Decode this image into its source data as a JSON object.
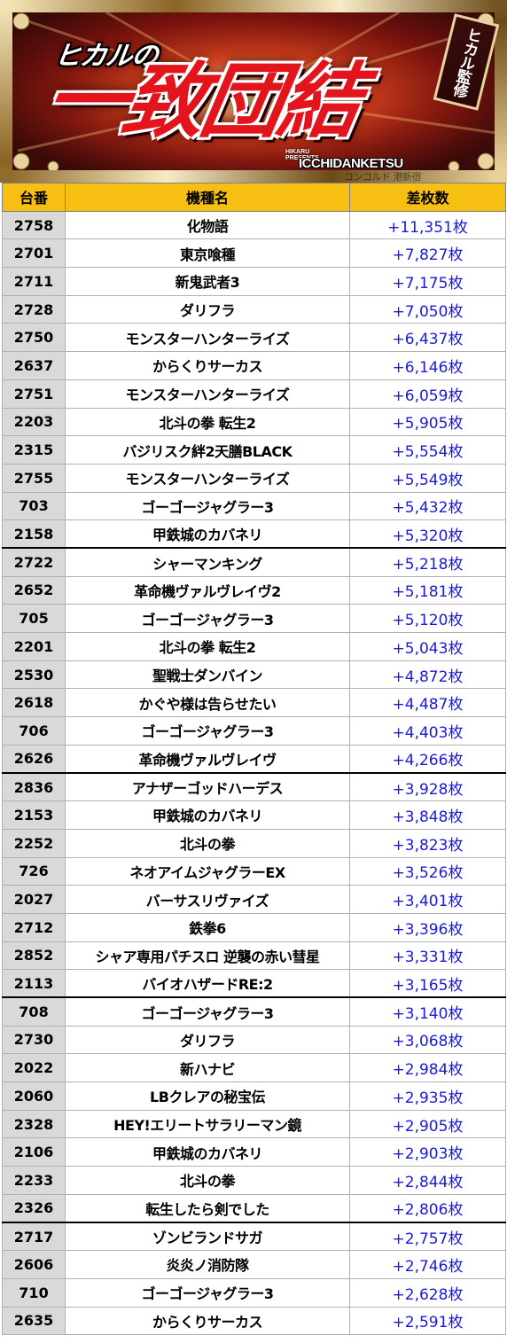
{
  "banner": {
    "small_title": "ヒカルの",
    "main_title": "一致団結",
    "seal": "ヒカル監修",
    "presents_line1": "HIKARU",
    "presents_line2": "PRESENTS",
    "brand": "ICCHIDANKETSU",
    "watermark": "コンコルド 港新宿",
    "colors": {
      "title_red": "#e3141c",
      "header_yellow": "#f7bf12",
      "diff_blue": "#1a1adc",
      "num_gray": "#d9d9d9"
    }
  },
  "table": {
    "headers": {
      "num": "台番",
      "name": "機種名",
      "diff": "差枚数"
    },
    "rows": [
      {
        "num": "2758",
        "name": "化物語",
        "diff": "+11,351枚"
      },
      {
        "num": "2701",
        "name": "東京喰種",
        "diff": "+7,827枚"
      },
      {
        "num": "2711",
        "name": "新鬼武者3",
        "diff": "+7,175枚"
      },
      {
        "num": "2728",
        "name": "ダリフラ",
        "diff": "+7,050枚"
      },
      {
        "num": "2750",
        "name": "モンスターハンターライズ",
        "diff": "+6,437枚"
      },
      {
        "num": "2637",
        "name": "からくりサーカス",
        "diff": "+6,146枚"
      },
      {
        "num": "2751",
        "name": "モンスターハンターライズ",
        "diff": "+6,059枚"
      },
      {
        "num": "2203",
        "name": "北斗の拳 転生2",
        "diff": "+5,905枚"
      },
      {
        "num": "2315",
        "name": "バジリスク絆2天膳BLACK",
        "diff": "+5,554枚"
      },
      {
        "num": "2755",
        "name": "モンスターハンターライズ",
        "diff": "+5,549枚"
      },
      {
        "num": "703",
        "name": "ゴーゴージャグラー3",
        "diff": "+5,432枚"
      },
      {
        "num": "2158",
        "name": "甲鉄城のカバネリ",
        "diff": "+5,320枚"
      },
      {
        "num": "2722",
        "name": "シャーマンキング",
        "diff": "+5,218枚"
      },
      {
        "num": "2652",
        "name": "革命機ヴァルヴレイヴ2",
        "diff": "+5,181枚"
      },
      {
        "num": "705",
        "name": "ゴーゴージャグラー3",
        "diff": "+5,120枚"
      },
      {
        "num": "2201",
        "name": "北斗の拳 転生2",
        "diff": "+5,043枚"
      },
      {
        "num": "2530",
        "name": "聖戦士ダンバイン",
        "diff": "+4,872枚"
      },
      {
        "num": "2618",
        "name": "かぐや様は告らせたい",
        "diff": "+4,487枚"
      },
      {
        "num": "706",
        "name": "ゴーゴージャグラー3",
        "diff": "+4,403枚"
      },
      {
        "num": "2626",
        "name": "革命機ヴァルヴレイヴ",
        "diff": "+4,266枚"
      },
      {
        "num": "2836",
        "name": "アナザーゴッドハーデス",
        "diff": "+3,928枚"
      },
      {
        "num": "2153",
        "name": "甲鉄城のカバネリ",
        "diff": "+3,848枚"
      },
      {
        "num": "2252",
        "name": "北斗の拳",
        "diff": "+3,823枚"
      },
      {
        "num": "726",
        "name": "ネオアイムジャグラーEX",
        "diff": "+3,526枚"
      },
      {
        "num": "2027",
        "name": "バーサスリヴァイズ",
        "diff": "+3,401枚"
      },
      {
        "num": "2712",
        "name": "鉄拳6",
        "diff": "+3,396枚"
      },
      {
        "num": "2852",
        "name": "シャア専用パチスロ 逆襲の赤い彗星",
        "diff": "+3,331枚"
      },
      {
        "num": "2113",
        "name": "バイオハザードRE:2",
        "diff": "+3,165枚"
      },
      {
        "num": "708",
        "name": "ゴーゴージャグラー3",
        "diff": "+3,140枚"
      },
      {
        "num": "2730",
        "name": "ダリフラ",
        "diff": "+3,068枚"
      },
      {
        "num": "2022",
        "name": "新ハナビ",
        "diff": "+2,984枚"
      },
      {
        "num": "2060",
        "name": "LBクレアの秘宝伝",
        "diff": "+2,935枚"
      },
      {
        "num": "2328",
        "name": "HEY!エリートサラリーマン鏡",
        "diff": "+2,905枚"
      },
      {
        "num": "2106",
        "name": "甲鉄城のカバネリ",
        "diff": "+2,903枚"
      },
      {
        "num": "2233",
        "name": "北斗の拳",
        "diff": "+2,844枚"
      },
      {
        "num": "2326",
        "name": "転生したら剣でした",
        "diff": "+2,806枚"
      },
      {
        "num": "2717",
        "name": "ゾンビランドサガ",
        "diff": "+2,757枚"
      },
      {
        "num": "2606",
        "name": "炎炎ノ消防隊",
        "diff": "+2,746枚"
      },
      {
        "num": "710",
        "name": "ゴーゴージャグラー3",
        "diff": "+2,628枚"
      },
      {
        "num": "2635",
        "name": "からくりサーカス",
        "diff": "+2,591枚"
      }
    ]
  }
}
